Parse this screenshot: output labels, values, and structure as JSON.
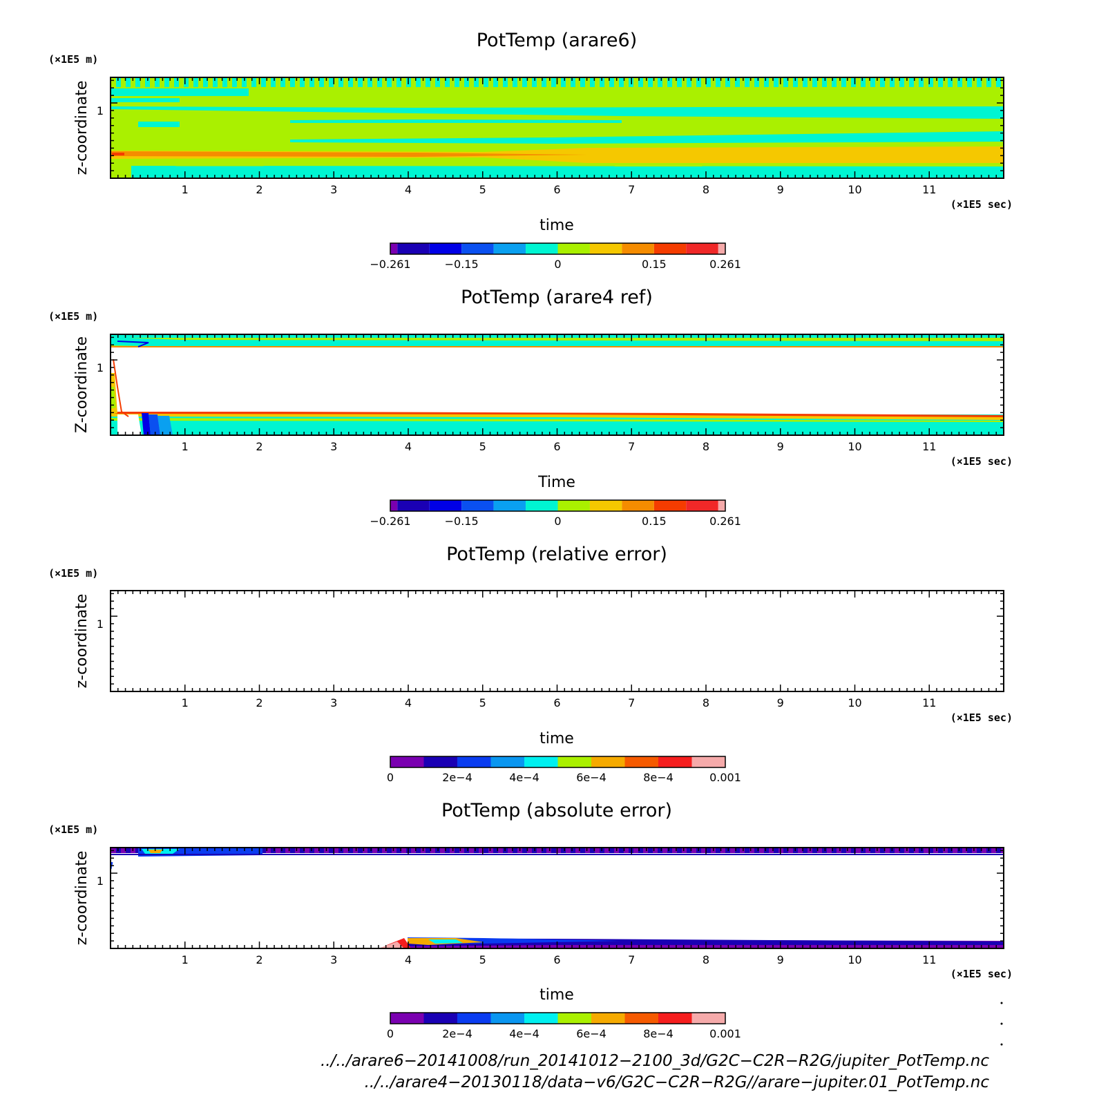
{
  "chart_data": [
    {
      "type": "heatmap",
      "title": "PotTemp (arare6)",
      "xlabel": "time",
      "ylabel": "z-coordinate",
      "x_unit": "(×1E5 sec)",
      "y_unit": "(×1E5 m)",
      "x_ticks": [
        "1",
        "2",
        "3",
        "4",
        "5",
        "6",
        "7",
        "8",
        "9",
        "10",
        "11"
      ],
      "y_ticks": [
        "1"
      ],
      "xlim": [
        0,
        12
      ],
      "ylim": [
        0.5,
        1.17
      ],
      "colorbar": {
        "colors": [
          "#7a00b0",
          "#1a00b4",
          "#0000e6",
          "#0a50f0",
          "#0aa0f0",
          "#00f5d2",
          "#aaf000",
          "#f5c800",
          "#f58c00",
          "#f53c00",
          "#f02828",
          "#f5aaaa"
        ],
        "labels": [
          "−0.261",
          "−0.15",
          "0",
          "0.15",
          "0.261"
        ],
        "label_values": [
          -0.261,
          -0.15,
          0,
          0.15,
          0.261
        ],
        "range": [
          -0.261,
          0.261
        ]
      }
    },
    {
      "type": "heatmap",
      "title": "PotTemp (arare4 ref)",
      "xlabel": "Time",
      "ylabel": "Z-coordinate",
      "x_unit": "(×1E5 sec)",
      "y_unit": "(×1E5 m)",
      "x_ticks": [
        "1",
        "2",
        "3",
        "4",
        "5",
        "6",
        "7",
        "8",
        "9",
        "10",
        "11"
      ],
      "y_ticks": [
        "1"
      ],
      "xlim": [
        0,
        12
      ],
      "ylim": [
        0.5,
        1.17
      ],
      "colorbar": {
        "colors": [
          "#7a00b0",
          "#1a00b4",
          "#0000e6",
          "#0a50f0",
          "#0aa0f0",
          "#00f5d2",
          "#aaf000",
          "#f5c800",
          "#f58c00",
          "#f53c00",
          "#f02828",
          "#f5aaaa"
        ],
        "labels": [
          "−0.261",
          "−0.15",
          "0",
          "0.15",
          "0.261"
        ],
        "label_values": [
          -0.261,
          -0.15,
          0,
          0.15,
          0.261
        ],
        "range": [
          -0.261,
          0.261
        ]
      }
    },
    {
      "type": "heatmap",
      "title": "PotTemp (relative error)",
      "xlabel": "time",
      "ylabel": "z-coordinate",
      "x_unit": "(×1E5 sec)",
      "y_unit": "(×1E5 m)",
      "x_ticks": [
        "1",
        "2",
        "3",
        "4",
        "5",
        "6",
        "7",
        "8",
        "9",
        "10",
        "11"
      ],
      "y_ticks": [
        "1"
      ],
      "xlim": [
        0,
        12
      ],
      "ylim": [
        0.5,
        1.17
      ],
      "colorbar": {
        "colors": [
          "#7a00b0",
          "#1a00b4",
          "#0a3cf0",
          "#0a96f0",
          "#00f0f0",
          "#aaf000",
          "#f5aa00",
          "#f55a00",
          "#f51e1e",
          "#f5aaaa"
        ],
        "labels": [
          "0",
          "2e−4",
          "4e−4",
          "6e−4",
          "8e−4",
          "0.001"
        ],
        "label_values": [
          0,
          0.0002,
          0.0004,
          0.0006,
          0.0008,
          0.001
        ],
        "range": [
          0,
          0.001
        ]
      }
    },
    {
      "type": "heatmap",
      "title": "PotTemp (absolute error)",
      "xlabel": "time",
      "ylabel": "z-coordinate",
      "x_unit": "(×1E5 sec)",
      "y_unit": "(×1E5 m)",
      "x_ticks": [
        "1",
        "2",
        "3",
        "4",
        "5",
        "6",
        "7",
        "8",
        "9",
        "10",
        "11"
      ],
      "y_ticks": [
        "1"
      ],
      "xlim": [
        0,
        12
      ],
      "ylim": [
        0.5,
        1.17
      ],
      "colorbar": {
        "colors": [
          "#7a00b0",
          "#1a00b4",
          "#0a3cf0",
          "#0a96f0",
          "#00f0f0",
          "#aaf000",
          "#f5aa00",
          "#f55a00",
          "#f51e1e",
          "#f5aaaa"
        ],
        "labels": [
          "0",
          "2e−4",
          "4e−4",
          "6e−4",
          "8e−4",
          "0.001"
        ],
        "label_values": [
          0,
          0.0002,
          0.0004,
          0.0006,
          0.0008,
          0.001
        ],
        "range": [
          0,
          0.001
        ]
      }
    }
  ],
  "footer": {
    "file1": "../../arare6−20141008/run_20141012−2100_3d/G2C−C2R−R2G/jupiter_PotTemp.nc",
    "file2": "../../arare4−20130118/data−v6/G2C−C2R−R2G//arare−jupiter.01_PotTemp.nc"
  }
}
